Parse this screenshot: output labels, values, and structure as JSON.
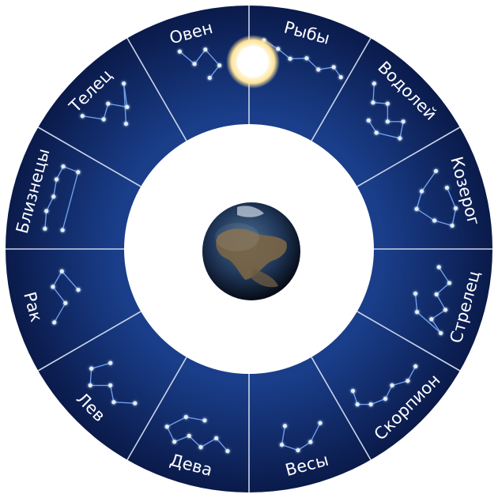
{
  "title": "",
  "signs": [
    {
      "name": "Рыбы"
    },
    {
      "name": "Водолей"
    },
    {
      "name": "Козерог"
    },
    {
      "name": "Стрелец"
    },
    {
      "name": "Скорпион"
    },
    {
      "name": "Весы"
    },
    {
      "name": "Дева"
    },
    {
      "name": "Лев"
    },
    {
      "name": "Рак"
    },
    {
      "name": "Близнецы"
    },
    {
      "name": "Телец"
    },
    {
      "name": "Овен"
    }
  ],
  "center": {
    "icon": "earth-icon"
  },
  "sun": {
    "icon": "sun-icon"
  },
  "colors": {
    "ring_inner": "#1a3e8a",
    "ring_outer": "#0a1a4a",
    "divider": "#c9d4ea",
    "star": "#dff0ff",
    "constellation_line": "#7fb0ff",
    "earth_ocean": "#1f3658",
    "earth_land": "#7b6646"
  }
}
